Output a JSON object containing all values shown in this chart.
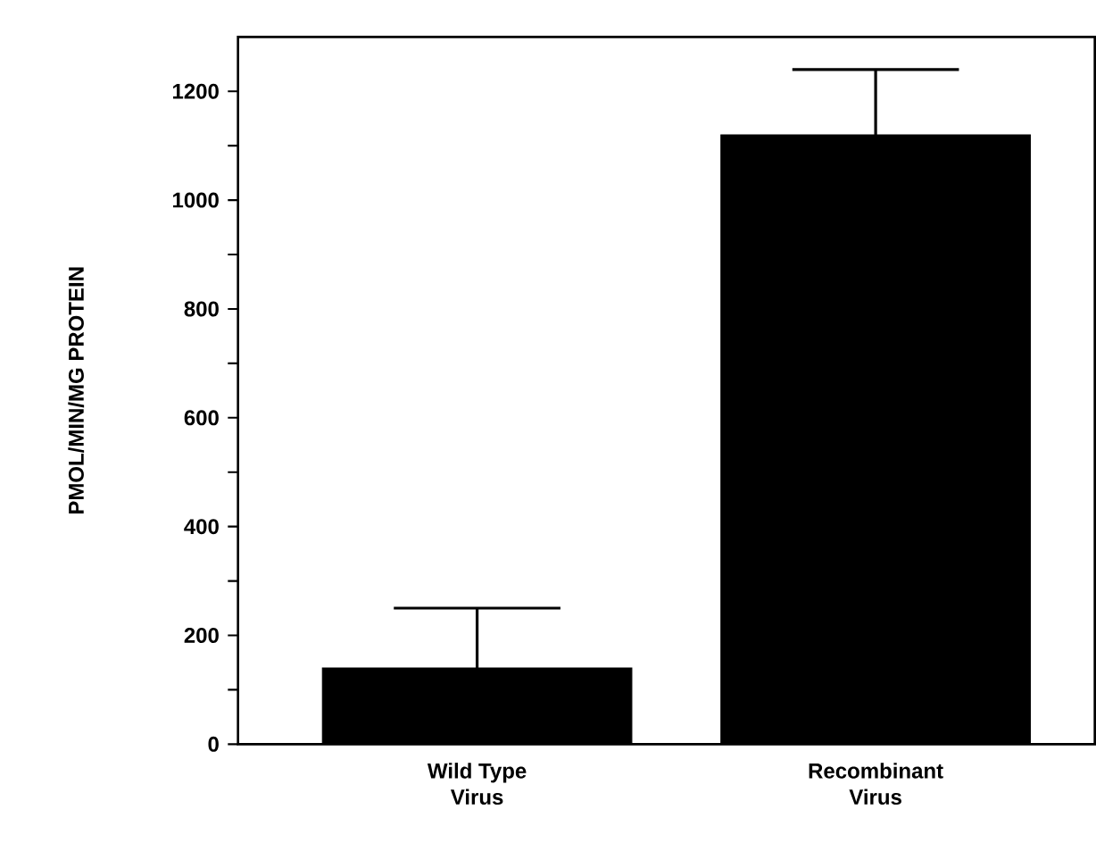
{
  "chart_data": {
    "type": "bar",
    "ylabel": "PMOL/MIN/MG PROTEIN",
    "categories": [
      "Wild Type\nVirus",
      "Recombinant\nVirus"
    ],
    "values": [
      140,
      1120
    ],
    "errors": [
      110,
      120
    ],
    "color": "#000000",
    "ylim": [
      0,
      1300
    ],
    "yticks": [
      0,
      {
        "value": 100,
        "label": null
      },
      200,
      {
        "value": 300,
        "label": null
      },
      400,
      {
        "value": 500,
        "label": null
      },
      600,
      {
        "value": 700,
        "label": null
      },
      800,
      {
        "value": 900,
        "label": null
      },
      1000,
      {
        "value": 1100,
        "label": null
      },
      1200
    ],
    "grid": false
  }
}
